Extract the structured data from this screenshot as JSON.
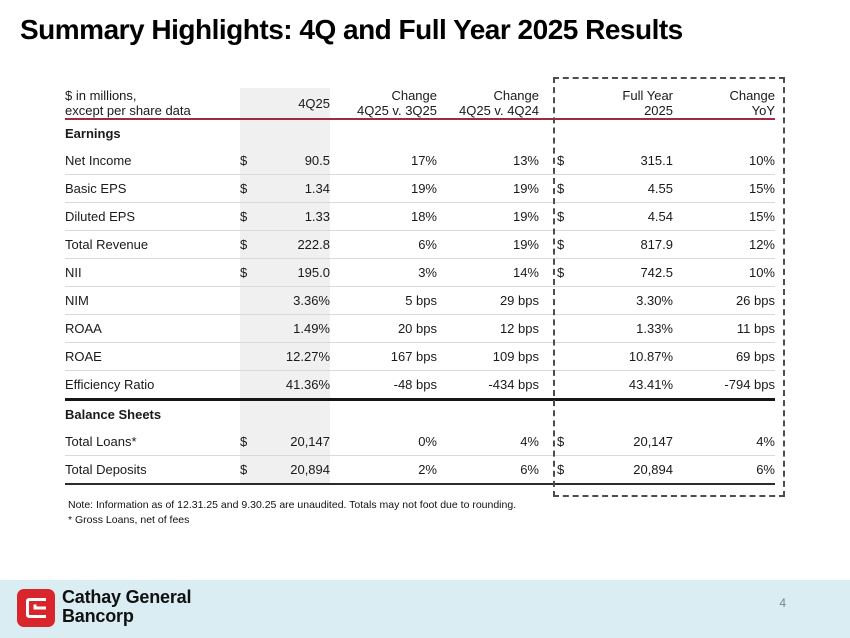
{
  "title": "Summary Highlights: 4Q and Full Year 2025 Results",
  "table": {
    "header": {
      "label_line1": "$ in millions,",
      "label_line2": "except per share data",
      "col_4q25": "4Q25",
      "col_chg_q_line1": "Change",
      "col_chg_q_line2": "4Q25 v. 3Q25",
      "col_chg_y_line1": "Change",
      "col_chg_y_line2": "4Q25 v. 4Q24",
      "col_fy_line1": "Full Year",
      "col_fy_line2": "2025",
      "col_yoy_line1": "Change",
      "col_yoy_line2": "YoY"
    },
    "sections": [
      {
        "name": "Earnings",
        "rows": [
          {
            "label": "Net Income",
            "q_dollar": "$",
            "q_val": "90.5",
            "chg_q": "17%",
            "chg_y": "13%",
            "fy_dollar": "$",
            "fy_val": "315.1",
            "yoy": "10%"
          },
          {
            "label": "Basic EPS",
            "q_dollar": "$",
            "q_val": "1.34",
            "chg_q": "19%",
            "chg_y": "19%",
            "fy_dollar": "$",
            "fy_val": "4.55",
            "yoy": "15%"
          },
          {
            "label": "Diluted EPS",
            "q_dollar": "$",
            "q_val": "1.33",
            "chg_q": "18%",
            "chg_y": "19%",
            "fy_dollar": "$",
            "fy_val": "4.54",
            "yoy": "15%"
          },
          {
            "label": "Total Revenue",
            "q_dollar": "$",
            "q_val": "222.8",
            "chg_q": "6%",
            "chg_y": "19%",
            "fy_dollar": "$",
            "fy_val": "817.9",
            "yoy": "12%"
          },
          {
            "label": "NII",
            "q_dollar": "$",
            "q_val": "195.0",
            "chg_q": "3%",
            "chg_y": "14%",
            "fy_dollar": "$",
            "fy_val": "742.5",
            "yoy": "10%"
          },
          {
            "label": "NIM",
            "q_dollar": "",
            "q_val": "3.36%",
            "chg_q": "5 bps",
            "chg_y": "29 bps",
            "fy_dollar": "",
            "fy_val": "3.30%",
            "yoy": "26 bps"
          },
          {
            "label": "ROAA",
            "q_dollar": "",
            "q_val": "1.49%",
            "chg_q": "20 bps",
            "chg_y": "12 bps",
            "fy_dollar": "",
            "fy_val": "1.33%",
            "yoy": "11 bps"
          },
          {
            "label": "ROAE",
            "q_dollar": "",
            "q_val": "12.27%",
            "chg_q": "167 bps",
            "chg_y": "109 bps",
            "fy_dollar": "",
            "fy_val": "10.87%",
            "yoy": "69 bps"
          },
          {
            "label": "Efficiency Ratio",
            "q_dollar": "",
            "q_val": "41.36%",
            "chg_q": "-48 bps",
            "chg_y": "-434 bps",
            "fy_dollar": "",
            "fy_val": "43.41%",
            "yoy": "-794 bps"
          }
        ]
      },
      {
        "name": "Balance Sheets",
        "rows": [
          {
            "label": "Total Loans*",
            "q_dollar": "$",
            "q_val": "20,147",
            "chg_q": "0%",
            "chg_y": "4%",
            "fy_dollar": "$",
            "fy_val": "20,147",
            "yoy": "4%"
          },
          {
            "label": "Total Deposits",
            "q_dollar": "$",
            "q_val": "20,894",
            "chg_q": "2%",
            "chg_y": "6%",
            "fy_dollar": "$",
            "fy_val": "20,894",
            "yoy": "6%"
          }
        ]
      }
    ]
  },
  "notes": {
    "line1": "Note: Information as of  12.31.25 and 9.30.25 are unaudited. Totals may not foot due to rounding.",
    "line2": "* Gross Loans, net of fees"
  },
  "footer": {
    "brand_line1": "Cathay General",
    "brand_line2": "Bancorp",
    "page_number": "4"
  },
  "colors": {
    "header_rule": "#9e2b43",
    "section_rule": "#161616",
    "row_separator": "#d9d9d9",
    "quarter_column_band": "#f0f0f0",
    "dashed_highlight": "#4d4d4d",
    "footer_band": "#d9edf2",
    "logo_red": "#d8262c",
    "page_number_gray": "#74868c"
  }
}
